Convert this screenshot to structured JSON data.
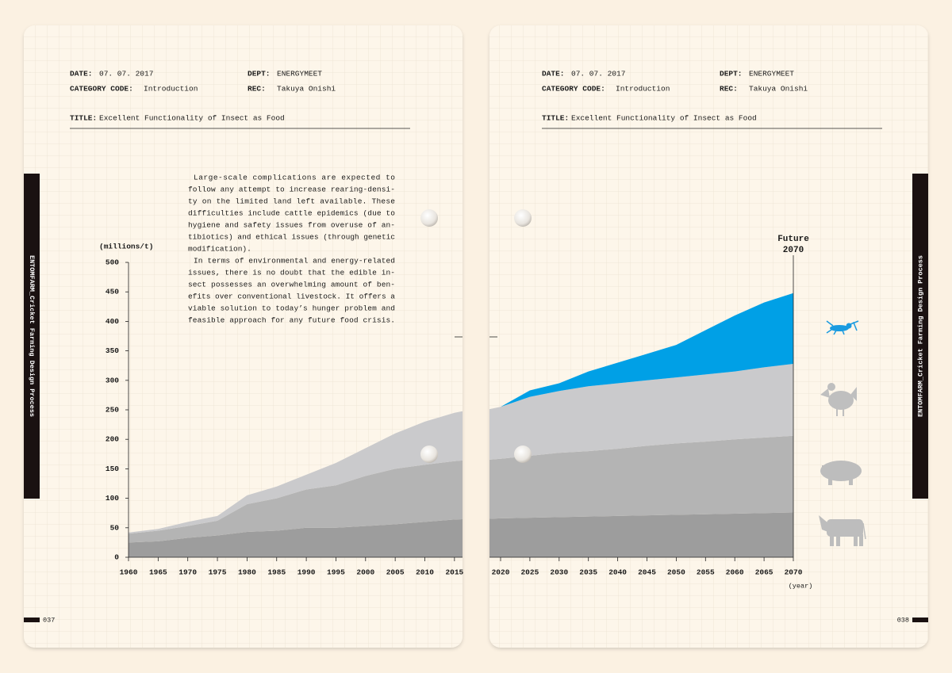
{
  "pages": [
    {
      "date_label": "DATE:",
      "date": "07. 07. 2017",
      "dept_label": "DEPT:",
      "dept": "ENERGYMEET",
      "category_label": "CATEGORY CODE:",
      "category": "Introduction",
      "rec_label": "REC:",
      "rec": "Takuya Onishi",
      "title_label": "TITLE:",
      "title": "Excellent Functionality of Insect as Food",
      "side_tab": "ENTOMFARM_Cricket Farming Design Process",
      "page_number": "037"
    },
    {
      "date_label": "DATE:",
      "date": "07. 07. 2017",
      "dept_label": "DEPT:",
      "dept": "ENERGYMEET",
      "category_label": "CATEGORY CODE:",
      "category": "Introduction",
      "rec_label": "REC:",
      "rec": "Takuya Onishi",
      "title_label": "TITLE:",
      "title": "Excellent Functionality of Insect as Food",
      "side_tab": "ENTOMFARM_Cricket Farming Design Process",
      "page_number": "038"
    }
  ],
  "body_text": [
    [
      "Large-scale complications are expected to",
      "follow any attempt to increase rearing-densi-",
      "ty on the limited land left available. These",
      "difficulties include cattle epidemics (due to",
      "hygiene and safety issues from overuse of an-",
      "tibiotics) and ethical issues (through genetic",
      "modification)."
    ],
    [
      "In terms of environmental and energy-related",
      "issues, there is no doubt that the edible in-",
      "sect possesses an overwhelming amount of ben-",
      "efits over conventional livestock. It offers a",
      "viable solution to today’s hunger problem and",
      "feasible approach for any future food crisis."
    ]
  ],
  "chart_data": {
    "type": "area",
    "stacked": true,
    "y_label": "(millions/t)",
    "x_label": "(year)",
    "annotation": [
      "Future",
      "2070"
    ],
    "x": [
      1960,
      1965,
      1970,
      1975,
      1980,
      1985,
      1990,
      1995,
      2000,
      2005,
      2010,
      2015,
      2020,
      2025,
      2030,
      2035,
      2040,
      2045,
      2050,
      2055,
      2060,
      2065,
      2070
    ],
    "series": [
      {
        "color": "#9d9d9d",
        "values": [
          25,
          27,
          33,
          37,
          43,
          45,
          50,
          50,
          53,
          56,
          60,
          64,
          66,
          67,
          68,
          69,
          70,
          71,
          72,
          73,
          74,
          75,
          76
        ]
      },
      {
        "color": "#b4b4b4",
        "values": [
          15,
          18,
          20,
          25,
          47,
          55,
          65,
          72,
          85,
          94,
          97,
          99,
          101,
          105,
          109,
          111,
          114,
          118,
          121,
          123,
          126,
          128,
          130
        ]
      },
      {
        "color": "#cacacc",
        "values": [
          2,
          3,
          7,
          8,
          15,
          20,
          25,
          38,
          47,
          60,
          73,
          82,
          88,
          100,
          105,
          110,
          111,
          111,
          112,
          114,
          115,
          119,
          122
        ]
      },
      {
        "color": "#00a0e6",
        "values": [
          null,
          null,
          null,
          null,
          null,
          null,
          null,
          null,
          null,
          null,
          null,
          null,
          0,
          11,
          13,
          25,
          35,
          45,
          55,
          75,
          95,
          110,
          120
        ]
      }
    ],
    "xlim": [
      1960,
      2070
    ],
    "xticks": [
      1960,
      1965,
      1970,
      1975,
      1980,
      1985,
      1990,
      1995,
      2000,
      2005,
      2010,
      2015,
      2020,
      2025,
      2030,
      2035,
      2040,
      2045,
      2050,
      2055,
      2060,
      2065,
      2070
    ],
    "ylim": [
      0,
      500
    ],
    "yticks": [
      0,
      50,
      100,
      150,
      200,
      250,
      300,
      350,
      400,
      450,
      500
    ]
  }
}
